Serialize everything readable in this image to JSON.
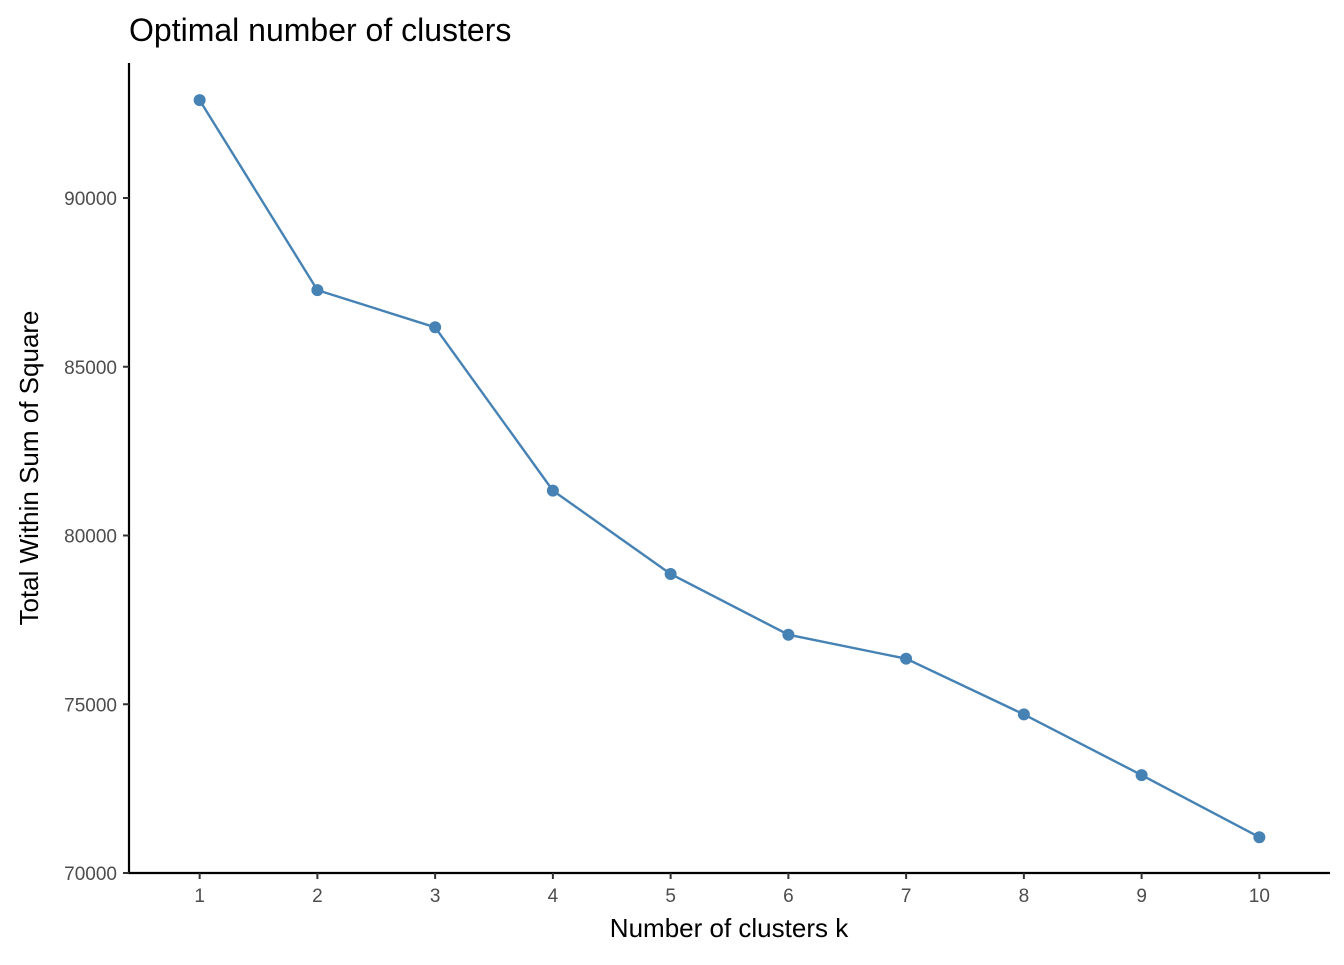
{
  "chart_data": {
    "type": "line",
    "title": "Optimal number of clusters",
    "xlabel": "Number of clusters k",
    "ylabel": "Total Within Sum of Square",
    "x": [
      1,
      2,
      3,
      4,
      5,
      6,
      7,
      8,
      9,
      10
    ],
    "series": [
      {
        "values": [
          92900,
          87270,
          86170,
          81330,
          78860,
          77060,
          76350,
          74700,
          72900,
          71060
        ]
      }
    ],
    "x_ticks": [
      "1",
      "2",
      "3",
      "4",
      "5",
      "6",
      "7",
      "8",
      "9",
      "10"
    ],
    "y_ticks": [
      "70000",
      "75000",
      "80000",
      "85000",
      "90000"
    ],
    "ylim": [
      70000,
      94000
    ],
    "xlim": [
      0.4,
      10.6
    ],
    "grid": false,
    "legend": "none",
    "colors": {
      "series": "#4682b4",
      "axis": "#000000",
      "tick_text": "#4d4d4d"
    }
  }
}
